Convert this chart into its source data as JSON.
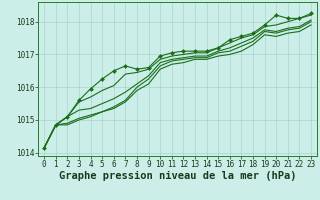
{
  "xlabel": "Graphe pression niveau de la mer (hPa)",
  "background_color": "#cceee8",
  "grid_color": "#aad4cc",
  "line_color": "#1a6e1a",
  "marker_color": "#1a6e1a",
  "ylim": [
    1013.9,
    1018.6
  ],
  "xlim": [
    -0.5,
    23.5
  ],
  "yticks": [
    1014,
    1015,
    1016,
    1017,
    1018
  ],
  "xticks": [
    0,
    1,
    2,
    3,
    4,
    5,
    6,
    7,
    8,
    9,
    10,
    11,
    12,
    13,
    14,
    15,
    16,
    17,
    18,
    19,
    20,
    21,
    22,
    23
  ],
  "series": [
    [
      1014.15,
      1014.85,
      1014.9,
      1015.05,
      1015.15,
      1015.25,
      1015.35,
      1015.55,
      1015.9,
      1016.1,
      1016.55,
      1016.7,
      1016.75,
      1016.85,
      1016.85,
      1016.95,
      1017.0,
      1017.1,
      1017.3,
      1017.6,
      1017.55,
      1017.65,
      1017.7,
      1017.9
    ],
    [
      1014.15,
      1014.85,
      1014.85,
      1015.0,
      1015.1,
      1015.25,
      1015.4,
      1015.6,
      1016.0,
      1016.25,
      1016.65,
      1016.8,
      1016.85,
      1016.9,
      1016.9,
      1017.05,
      1017.1,
      1017.25,
      1017.4,
      1017.7,
      1017.65,
      1017.75,
      1017.8,
      1018.0
    ],
    [
      1014.15,
      1014.85,
      1015.1,
      1015.3,
      1015.35,
      1015.5,
      1015.65,
      1015.85,
      1016.1,
      1016.35,
      1016.75,
      1016.85,
      1016.9,
      1016.95,
      1016.95,
      1017.1,
      1017.2,
      1017.35,
      1017.5,
      1017.75,
      1017.7,
      1017.8,
      1017.85,
      1018.05
    ],
    [
      1014.15,
      1014.85,
      1015.1,
      1015.55,
      1015.7,
      1015.9,
      1016.05,
      1016.4,
      1016.45,
      1016.55,
      1016.85,
      1016.95,
      1017.0,
      1017.05,
      1017.05,
      1017.2,
      1017.35,
      1017.5,
      1017.6,
      1017.85,
      1017.9,
      1018.0,
      1018.1,
      1018.2
    ],
    [
      1014.15,
      1014.85,
      1015.1,
      1015.6,
      1015.95,
      1016.25,
      1016.5,
      1016.65,
      1016.55,
      1016.6,
      1016.95,
      1017.05,
      1017.1,
      1017.1,
      1017.1,
      1017.2,
      1017.45,
      1017.55,
      1017.65,
      1017.9,
      1018.2,
      1018.1,
      1018.1,
      1018.25
    ]
  ],
  "marker_indices": [
    0,
    1,
    2,
    3,
    4,
    5,
    6,
    7,
    8,
    9,
    10,
    11,
    12,
    13,
    14,
    15,
    16,
    17,
    18,
    19,
    20,
    21,
    22,
    23
  ],
  "tick_fontsize": 5.5,
  "xlabel_fontsize": 7.5,
  "linewidth": 0.8
}
